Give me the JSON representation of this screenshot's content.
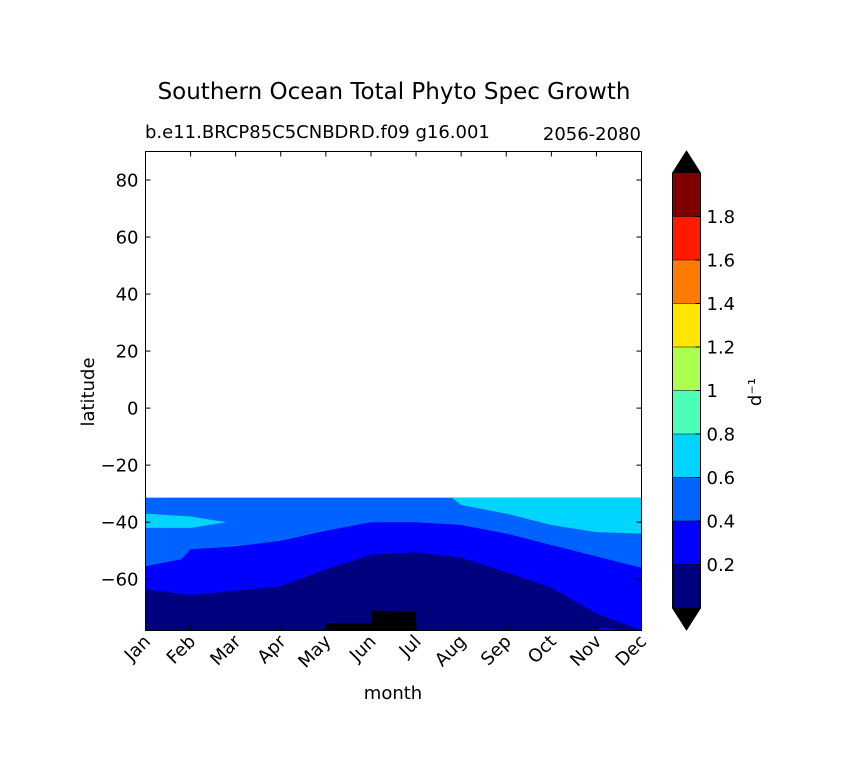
{
  "chart_data": {
    "type": "heatmap",
    "title": "Southern Ocean Total Phyto Spec Growth",
    "subtitle_left": "b.e11.BRCP85C5CNBDRD.f09 g16.001",
    "subtitle_right": "2056-2080",
    "xlabel": "month",
    "ylabel": "latitude",
    "x_categories": [
      "Jan",
      "Feb",
      "Mar",
      "Apr",
      "May",
      "Jun",
      "Jul",
      "Aug",
      "Sep",
      "Oct",
      "Nov",
      "Dec"
    ],
    "xlim": [
      0,
      11
    ],
    "ylim": [
      -78,
      90
    ],
    "y_ticks": [
      80,
      60,
      40,
      20,
      0,
      -20,
      -40,
      -60
    ],
    "y_tick_labels": [
      "80",
      "60",
      "40",
      "20",
      "0",
      "−20",
      "−40",
      "−60"
    ],
    "data_top_latitude": -31.5,
    "colorbar": {
      "label": "d⁻¹",
      "levels": [
        0,
        0.2,
        0.4,
        0.6,
        0.8,
        1.0,
        1.2,
        1.4,
        1.6,
        1.8,
        2.0
      ],
      "colors": [
        "#00007f",
        "#0000ff",
        "#0063ff",
        "#00d5ff",
        "#4dffb6",
        "#abff4d",
        "#ffe600",
        "#ff7a00",
        "#ff1a00",
        "#7f0000"
      ],
      "tick_values": [
        0.2,
        0.4,
        0.6,
        0.8,
        1.0,
        1.2,
        1.4,
        1.6,
        1.8
      ],
      "tick_labels": [
        "0.2",
        "0.4",
        "0.6",
        "0.8",
        "1",
        "1.2",
        "1.4",
        "1.6",
        "1.8"
      ],
      "extend": "both",
      "under_color": "#000000",
      "over_color": "#000000"
    },
    "contour_bands": [
      {
        "level_range": "0.6-0.8",
        "color": "#00d5ff",
        "regions": [
          [
            [
              0,
              -37
            ],
            [
              1,
              -38
            ],
            [
              1.8,
              -40
            ],
            [
              1,
              -42
            ],
            [
              0,
              -42
            ]
          ],
          [
            [
              6.8,
              -31.5
            ],
            [
              11,
              -31.5
            ],
            [
              11,
              -44
            ],
            [
              10,
              -43.5
            ],
            [
              9,
              -41
            ],
            [
              8,
              -37
            ],
            [
              7,
              -34
            ]
          ],
          [
            [
              10.5,
              -33
            ],
            [
              11,
              -32.5
            ],
            [
              11,
              -34
            ],
            [
              10.6,
              -33.5
            ]
          ]
        ]
      },
      {
        "level_range": "0.4-0.6",
        "color": "#0063ff",
        "top_boundary": [
          [
            0,
            -31.5
          ],
          [
            11,
            -31.5
          ]
        ],
        "bottom_boundary": [
          [
            0,
            -55.5
          ],
          [
            0.8,
            -53
          ],
          [
            1,
            -49.5
          ],
          [
            2,
            -48.5
          ],
          [
            3,
            -46.5
          ],
          [
            4,
            -43
          ],
          [
            5,
            -40
          ],
          [
            6,
            -40
          ],
          [
            7,
            -41
          ],
          [
            8,
            -44
          ],
          [
            9,
            -48
          ],
          [
            10,
            -52
          ],
          [
            11,
            -56
          ]
        ]
      },
      {
        "level_range": "0.2-0.4",
        "color": "#0000ff",
        "bottom_boundary": [
          [
            0,
            -63.5
          ],
          [
            1,
            -65.5
          ],
          [
            2,
            -64
          ],
          [
            3,
            -62.5
          ],
          [
            4,
            -56.5
          ],
          [
            5,
            -51.5
          ],
          [
            6,
            -50.5
          ],
          [
            7,
            -52.5
          ],
          [
            8,
            -57.5
          ],
          [
            9,
            -63
          ],
          [
            10,
            -72
          ],
          [
            11,
            -78
          ]
        ],
        "patches": [
          [
            [
              9.8,
              -78
            ],
            [
              10.2,
              -77
            ],
            [
              10.6,
              -78
            ]
          ]
        ]
      },
      {
        "level_range": "0.0-0.2",
        "color": "#00007f",
        "patches": [
          [
            [
              0,
              -64
            ],
            [
              0,
              -78
            ],
            [
              9.8,
              -78
            ],
            [
              10.3,
              -73
            ],
            [
              9,
              -63
            ]
          ]
        ]
      },
      {
        "level_range": "below 0",
        "color": "#000000",
        "patches": [
          [
            [
              4,
              -78
            ],
            [
              4,
              -75.5
            ],
            [
              5,
              -75.5
            ],
            [
              5,
              -71
            ],
            [
              6,
              -71.5
            ],
            [
              6,
              -78
            ]
          ]
        ]
      }
    ]
  }
}
